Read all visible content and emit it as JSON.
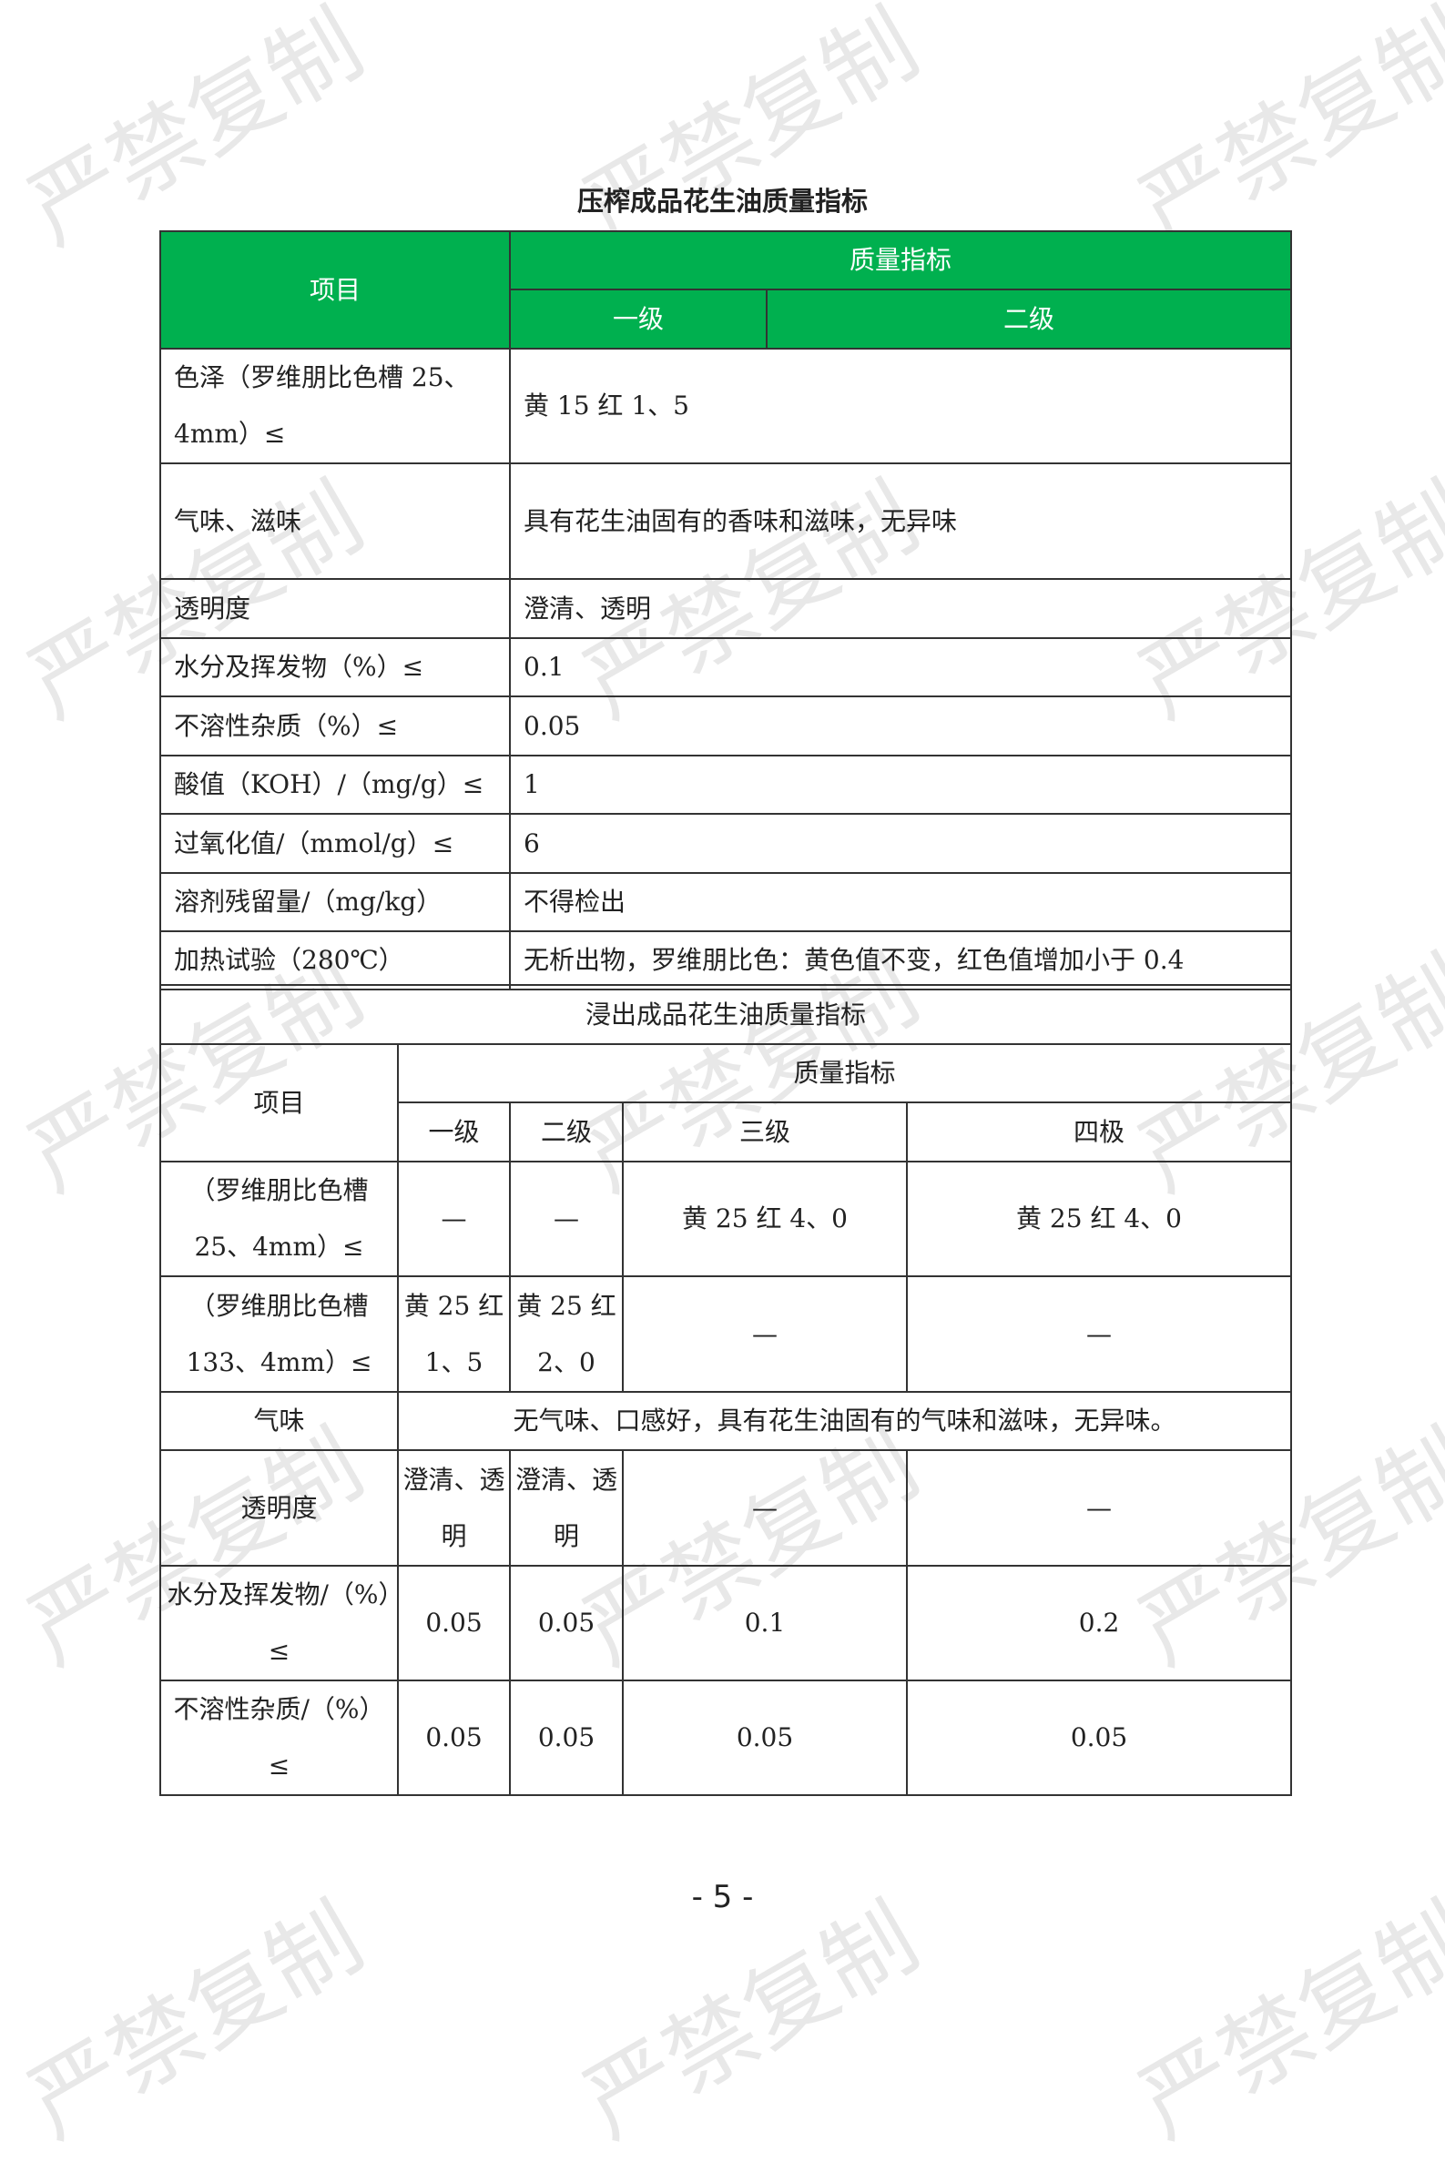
{
  "watermark": "严禁复制",
  "table1": {
    "title": "压榨成品花生油质量指标",
    "header": {
      "item": "项目",
      "quality": "质量指标",
      "grade1": "一级",
      "grade2": "二级"
    },
    "rows": [
      {
        "label": "色泽（罗维朋比色槽 25、4mm）≤",
        "value": "黄 15 红 1、5"
      },
      {
        "label": "气味、滋味",
        "value": "具有花生油固有的香味和滋味，无异味"
      },
      {
        "label": "透明度",
        "value": "澄清、透明"
      },
      {
        "label": "水分及挥发物（%）≤",
        "value": "0.1"
      },
      {
        "label": "不溶性杂质（%）≤",
        "value": "0.05"
      },
      {
        "label": "酸值（KOH）/（mg/g）≤",
        "value": "1"
      },
      {
        "label": "过氧化值/（mmol/g）≤",
        "value": "6"
      },
      {
        "label": "溶剂残留量/（mg/kg）",
        "value": "不得检出"
      },
      {
        "label": "加热试验（280℃）",
        "value": "无析出物，罗维朋比色：黄色值不变，红色值增加小于 0.4"
      }
    ]
  },
  "table2": {
    "title": "浸出成品花生油质量指标",
    "header": {
      "item": "项目",
      "quality": "质量指标",
      "grades": [
        "一级",
        "二级",
        "三级",
        "四极"
      ]
    },
    "rows": [
      {
        "label": "（罗维朋比色槽 25、4mm）≤",
        "values": [
          "—",
          "—",
          "黄 25 红 4、0",
          "黄 25 红 4、0"
        ]
      },
      {
        "label": "（罗维朋比色槽 133、4mm）≤",
        "values": [
          "黄 25 红 1、5",
          "黄 25 红 2、0",
          "—",
          "—"
        ]
      },
      {
        "label": "气味",
        "merged": "无气味、口感好，具有花生油固有的气味和滋味，无异味。"
      },
      {
        "label": "透明度",
        "values": [
          "澄清、透明",
          "澄清、透明",
          "—",
          "—"
        ]
      },
      {
        "label": "水分及挥发物/（%）≤",
        "values": [
          "0.05",
          "0.05",
          "0.1",
          "0.2"
        ]
      },
      {
        "label": "不溶性杂质/（%）≤",
        "values": [
          "0.05",
          "0.05",
          "0.05",
          "0.05"
        ]
      }
    ]
  },
  "page_number": "- 5 -",
  "colors": {
    "header_green": "#00b04f"
  }
}
